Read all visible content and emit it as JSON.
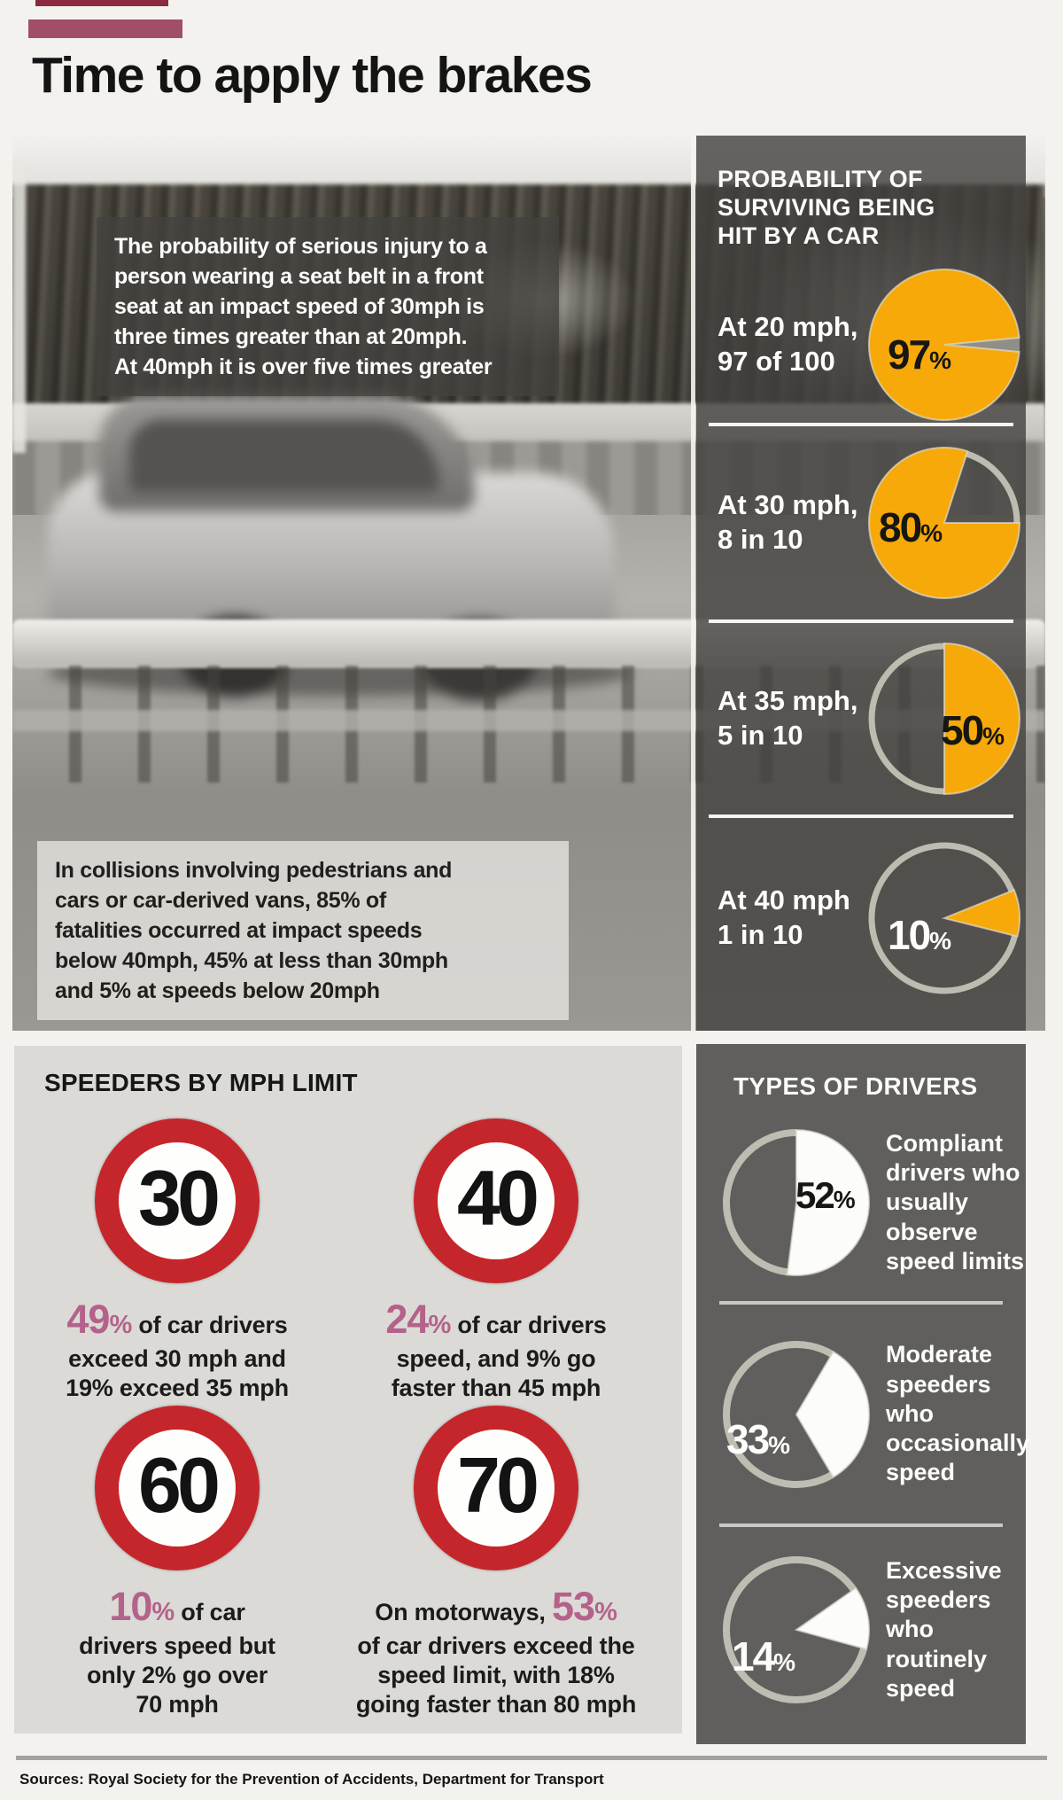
{
  "colors": {
    "accent_yellow": "#f7a90a",
    "accent_pink": "#b4628a",
    "sign_red": "#c5262b",
    "panel_gray": "#605f5d",
    "bar_maroon": "#8b2a3e",
    "bar_mauve": "#a24e68"
  },
  "header": {
    "title": "Time to apply the brakes"
  },
  "photo": {
    "overlay_top_lines": [
      "The probability of serious injury to a",
      "person wearing a seat belt in a front",
      "seat at an impact speed of 30mph is",
      "three times greater than at 20mph.",
      "At 40mph it is over five times greater"
    ],
    "overlay_bottom_lines": [
      "In collisions involving pedestrians and",
      "cars or car-derived vans, 85% of",
      "fatalities occurred at impact speeds",
      "below 40mph, 45% at less than 30mph",
      "and 5% at speeds below 20mph"
    ]
  },
  "survival_panel": {
    "title_lines": [
      "PROBABILITY OF",
      "SURVIVING BEING",
      "HIT BY A CAR"
    ],
    "rows": [
      {
        "label_lines": [
          "At 20 mph,",
          "97 of 100"
        ],
        "value": 97,
        "num": "97",
        "unit": "%"
      },
      {
        "label_lines": [
          "At 30 mph,",
          "8 in 10"
        ],
        "value": 80,
        "num": "80",
        "unit": "%"
      },
      {
        "label_lines": [
          "At 35 mph,",
          "5 in 10"
        ],
        "value": 50,
        "num": "50",
        "unit": "%"
      },
      {
        "label_lines": [
          "At 40 mph",
          "1 in 10"
        ],
        "value": 10,
        "num": "10",
        "unit": "%"
      }
    ]
  },
  "speeders": {
    "title": "SPEEDERS BY MPH LIMIT",
    "items": [
      {
        "sign": "30",
        "pre": "",
        "big": "49",
        "unit": "%",
        "post": [
          " of car drivers",
          "exceed 30 mph and",
          "19% exceed 35 mph"
        ]
      },
      {
        "sign": "40",
        "pre": "",
        "big": "24",
        "unit": "%",
        "post": [
          " of car drivers",
          "speed, and 9% go",
          "faster than 45 mph"
        ]
      },
      {
        "sign": "60",
        "pre": "",
        "big": "10",
        "unit": "%",
        "post": [
          " of car",
          "drivers speed but",
          "only 2% go over",
          "70 mph"
        ]
      },
      {
        "sign": "70",
        "pre": "On motorways, ",
        "big": "53",
        "unit": "%",
        "post": [
          "",
          "of car drivers exceed the",
          "speed limit, with 18%",
          "going faster than 80 mph"
        ]
      }
    ]
  },
  "drivers": {
    "title": "TYPES OF DRIVERS",
    "items": [
      {
        "value": 52,
        "num": "52",
        "unit": "%",
        "desc_lines": [
          "Compliant",
          "drivers who",
          "usually",
          "observe",
          "speed limits"
        ]
      },
      {
        "value": 33,
        "num": "33",
        "unit": "%",
        "desc_lines": [
          "Moderate",
          "speeders",
          "who",
          "occasionally",
          "speed"
        ]
      },
      {
        "value": 14,
        "num": "14",
        "unit": "%",
        "desc_lines": [
          "Excessive",
          "speeders",
          "who",
          "routinely",
          "speed"
        ]
      }
    ]
  },
  "sources": {
    "text": "Sources: Royal Society for the Prevention of Accidents, Department for Transport"
  },
  "chart_data": [
    {
      "type": "pie",
      "title": "PROBABILITY OF SURVIVING BEING HIT BY A CAR",
      "categories": [
        "At 20 mph, 97 of 100",
        "At 30 mph, 8 in 10",
        "At 35 mph, 5 in 10",
        "At 40 mph 1 in 10"
      ],
      "values": [
        97,
        80,
        50,
        10
      ],
      "unit": "%",
      "legend_position": "left",
      "slice_color": "#f7a90a"
    },
    {
      "type": "table",
      "title": "SPEEDERS BY MPH LIMIT",
      "categories": [
        "30 mph limit",
        "40 mph limit",
        "60 mph limit",
        "70 mph limit (motorways)"
      ],
      "values": [
        49,
        24,
        10,
        53
      ],
      "unit": "%",
      "notes": [
        "49% of car drivers exceed 30 mph and 19% exceed 35 mph",
        "24% of car drivers speed, and 9% go faster than 45 mph",
        "10% of car drivers speed but only 2% go over 70 mph",
        "On motorways, 53% of car drivers exceed the speed limit, with 18% going faster than 80 mph"
      ]
    },
    {
      "type": "pie",
      "title": "TYPES OF DRIVERS",
      "categories": [
        "Compliant drivers who usually observe speed limits",
        "Moderate speeders who occasionally speed",
        "Excessive speeders who routinely speed"
      ],
      "values": [
        52,
        33,
        14
      ],
      "unit": "%",
      "slice_color": "#ffffff"
    }
  ]
}
